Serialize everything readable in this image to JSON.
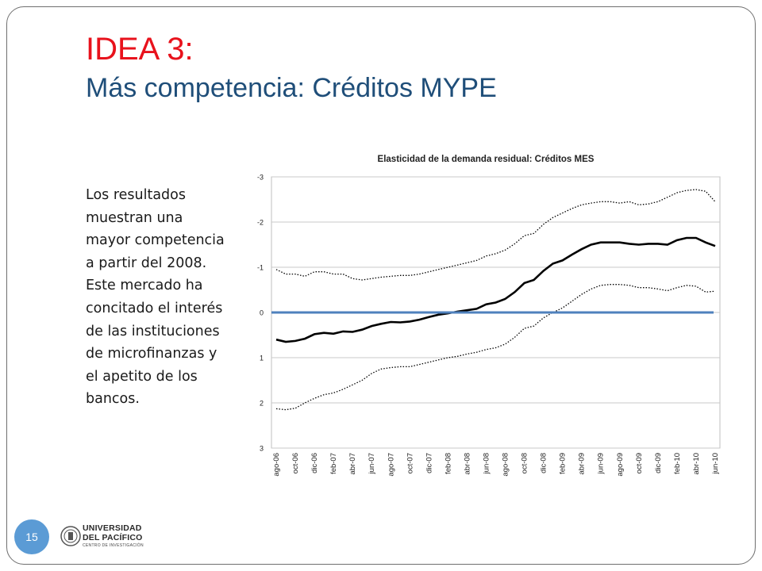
{
  "slide": {
    "title_line1": "IDEA 3:",
    "title_line2": "Más competencia: Créditos MYPE",
    "body": "Los resultados muestran una mayor competencia a partir del 2008. Este mercado ha concitado el interés de las instituciones de microfinanzas y el apetito de los bancos.",
    "page_number": "15",
    "logo": {
      "line1": "UNIVERSIDAD",
      "line2": "DEL PACÍFICO",
      "line3": "CENTRO DE INVESTIGACIÓN"
    }
  },
  "chart_data": {
    "type": "line",
    "title": "Elasticidad de la demanda residual: Créditos MES",
    "ylim": [
      -3,
      3
    ],
    "y_inverted": true,
    "yticks": [
      "-3",
      "-2",
      "-1",
      "0",
      "1",
      "2",
      "3"
    ],
    "grid": true,
    "xtick_labels": [
      "ago-06",
      "oct-06",
      "dic-06",
      "feb-07",
      "abr-07",
      "jun-07",
      "ago-07",
      "oct-07",
      "dic-07",
      "feb-08",
      "abr-08",
      "jun-08",
      "ago-08",
      "oct-08",
      "dic-08",
      "feb-09",
      "abr-09",
      "jun-09",
      "ago-09",
      "oct-09",
      "dic-09",
      "feb-10",
      "abr-10",
      "jun-10"
    ],
    "x": [
      "ago-06",
      "sep-06",
      "oct-06",
      "nov-06",
      "dic-06",
      "ene-07",
      "feb-07",
      "mar-07",
      "abr-07",
      "may-07",
      "jun-07",
      "jul-07",
      "ago-07",
      "sep-07",
      "oct-07",
      "nov-07",
      "dic-07",
      "ene-08",
      "feb-08",
      "mar-08",
      "abr-08",
      "may-08",
      "jun-08",
      "jul-08",
      "ago-08",
      "sep-08",
      "oct-08",
      "nov-08",
      "dic-08",
      "ene-09",
      "feb-09",
      "mar-09",
      "abr-09",
      "may-09",
      "jun-09",
      "jul-09",
      "ago-09",
      "sep-09",
      "oct-09",
      "nov-09",
      "dic-09",
      "ene-10",
      "feb-10",
      "mar-10",
      "abr-10",
      "may-10",
      "jun-10"
    ],
    "series": [
      {
        "style": "solid",
        "color": "#000000",
        "values": [
          0.6,
          0.65,
          0.63,
          0.58,
          0.48,
          0.45,
          0.47,
          0.42,
          0.43,
          0.38,
          0.3,
          0.25,
          0.21,
          0.22,
          0.2,
          0.16,
          0.1,
          0.05,
          0.02,
          -0.02,
          -0.05,
          -0.08,
          -0.18,
          -0.22,
          -0.3,
          -0.45,
          -0.65,
          -0.72,
          -0.92,
          -1.08,
          -1.15,
          -1.28,
          -1.4,
          -1.5,
          -1.55,
          -1.55,
          -1.55,
          -1.52,
          -1.5,
          -1.52,
          -1.52,
          -1.5,
          -1.6,
          -1.65,
          -1.65,
          -1.55,
          -1.47
        ]
      },
      {
        "style": "dotted",
        "color": "#000000",
        "values": [
          -0.95,
          -0.85,
          -0.85,
          -0.8,
          -0.9,
          -0.9,
          -0.85,
          -0.85,
          -0.75,
          -0.72,
          -0.75,
          -0.78,
          -0.8,
          -0.82,
          -0.82,
          -0.85,
          -0.9,
          -0.95,
          -1.0,
          -1.05,
          -1.1,
          -1.15,
          -1.25,
          -1.3,
          -1.38,
          -1.52,
          -1.7,
          -1.75,
          -1.95,
          -2.1,
          -2.2,
          -2.3,
          -2.38,
          -2.42,
          -2.45,
          -2.45,
          -2.42,
          -2.45,
          -2.38,
          -2.4,
          -2.45,
          -2.55,
          -2.65,
          -2.7,
          -2.72,
          -2.68,
          -2.45
        ]
      },
      {
        "style": "dotted",
        "color": "#000000",
        "values": [
          2.13,
          2.15,
          2.12,
          2.0,
          1.9,
          1.82,
          1.78,
          1.7,
          1.6,
          1.5,
          1.35,
          1.25,
          1.22,
          1.2,
          1.2,
          1.15,
          1.1,
          1.05,
          1.0,
          0.97,
          0.92,
          0.88,
          0.82,
          0.78,
          0.7,
          0.55,
          0.35,
          0.3,
          0.12,
          0.0,
          -0.1,
          -0.25,
          -0.4,
          -0.52,
          -0.6,
          -0.62,
          -0.62,
          -0.6,
          -0.55,
          -0.55,
          -0.52,
          -0.48,
          -0.55,
          -0.6,
          -0.58,
          -0.45,
          -0.47
        ]
      },
      {
        "style": "baseline",
        "color": "#4f81bd",
        "values": [
          0,
          0,
          0,
          0,
          0,
          0,
          0,
          0,
          0,
          0,
          0,
          0,
          0,
          0,
          0,
          0,
          0,
          0,
          0,
          0,
          0,
          0,
          0,
          0,
          0,
          0,
          0,
          0,
          0,
          0,
          0,
          0,
          0,
          0,
          0,
          0,
          0,
          0,
          0,
          0,
          0,
          0,
          0,
          0,
          0,
          0,
          0
        ]
      }
    ]
  }
}
